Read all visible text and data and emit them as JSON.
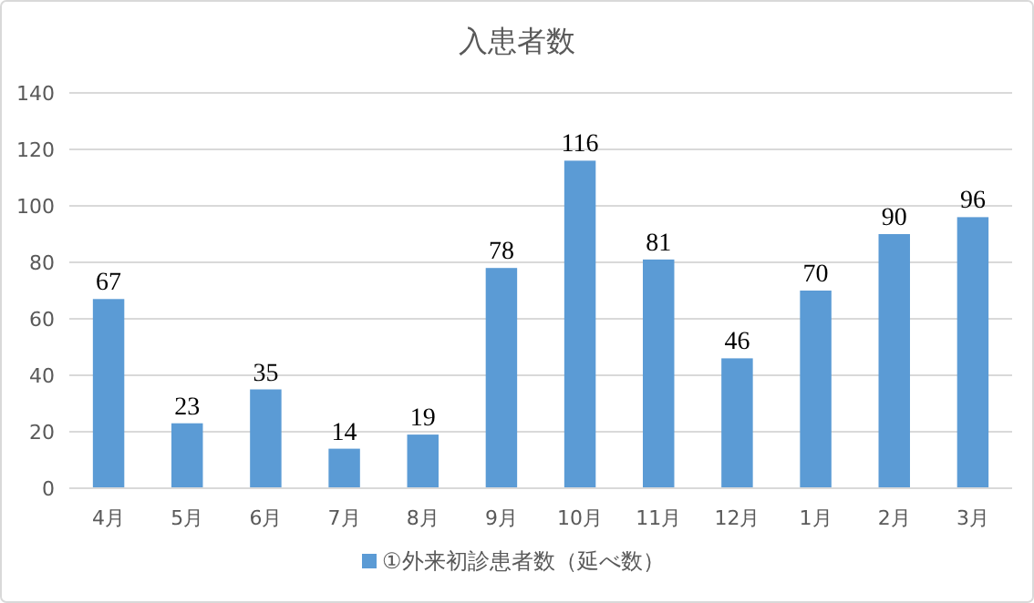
{
  "chart_data": {
    "type": "bar",
    "title": "入患者数",
    "categories": [
      "4月",
      "5月",
      "6月",
      "7月",
      "8月",
      "9月",
      "10月",
      "11月",
      "12月",
      "1月",
      "2月",
      "3月"
    ],
    "series": [
      {
        "name": "①外来初診患者数（延べ数）",
        "color": "#5b9bd5",
        "values": [
          67,
          23,
          35,
          14,
          19,
          78,
          116,
          81,
          46,
          70,
          90,
          96
        ]
      }
    ],
    "ylim": [
      0,
      140
    ],
    "yticks": [
      0,
      20,
      40,
      60,
      80,
      100,
      120,
      140
    ],
    "grid": "y",
    "legend": "bottom",
    "data_labels": true
  }
}
